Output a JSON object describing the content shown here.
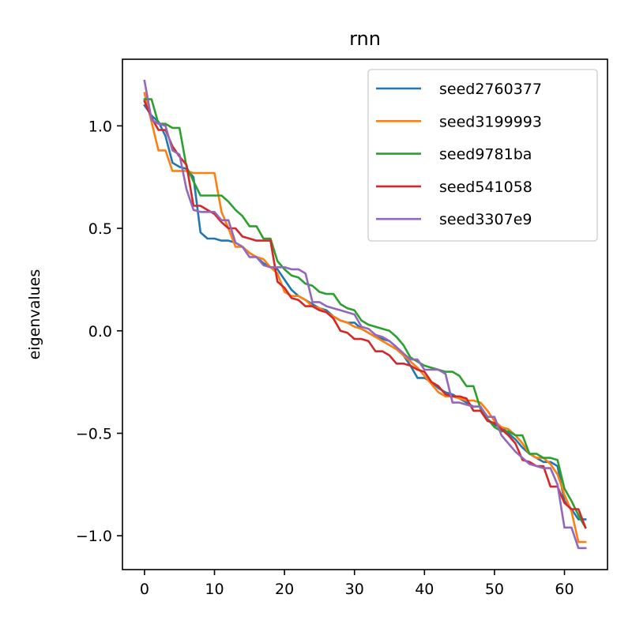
{
  "chart_data": {
    "type": "line",
    "title": "rnn",
    "xlabel": "",
    "ylabel": "eigenvalues",
    "xlim": [
      -3.15,
      66.15
    ],
    "ylim": [
      -1.165,
      1.325
    ],
    "xticks": [
      0,
      10,
      20,
      30,
      40,
      50,
      60
    ],
    "xtick_labels": [
      "0",
      "10",
      "20",
      "30",
      "40",
      "50",
      "60"
    ],
    "yticks": [
      1.0,
      0.5,
      0.0,
      -0.5,
      -1.0
    ],
    "ytick_labels": [
      "1.0",
      "0.5",
      "0.0",
      "−0.5",
      "−1.0"
    ],
    "grid": false,
    "legend_position": "top-right",
    "series": [
      {
        "name": "seed2760377",
        "color": "#1f77b4",
        "values": [
          1.1,
          1.05,
          1.02,
          0.95,
          0.82,
          0.8,
          0.79,
          0.75,
          0.48,
          0.45,
          0.45,
          0.44,
          0.44,
          0.43,
          0.41,
          0.38,
          0.36,
          0.33,
          0.31,
          0.3,
          0.25,
          0.2,
          0.17,
          0.15,
          0.13,
          0.11,
          0.1,
          0.07,
          0.05,
          0.04,
          0.04,
          0.01,
          -0.01,
          -0.03,
          -0.04,
          -0.05,
          -0.08,
          -0.12,
          -0.17,
          -0.23,
          -0.23,
          -0.25,
          -0.28,
          -0.3,
          -0.31,
          -0.33,
          -0.35,
          -0.37,
          -0.37,
          -0.43,
          -0.46,
          -0.47,
          -0.5,
          -0.53,
          -0.57,
          -0.6,
          -0.62,
          -0.64,
          -0.64,
          -0.66,
          -0.83,
          -0.87,
          -0.92,
          -0.92
        ]
      },
      {
        "name": "seed3199993",
        "color": "#ff7f0e",
        "values": [
          1.16,
          1.02,
          0.88,
          0.88,
          0.78,
          0.78,
          0.78,
          0.77,
          0.77,
          0.77,
          0.77,
          0.58,
          0.5,
          0.41,
          0.41,
          0.38,
          0.36,
          0.35,
          0.31,
          0.28,
          0.19,
          0.17,
          0.17,
          0.15,
          0.12,
          0.11,
          0.09,
          0.07,
          0.05,
          0.04,
          0.02,
          0.01,
          -0.01,
          -0.03,
          -0.05,
          -0.07,
          -0.09,
          -0.12,
          -0.15,
          -0.18,
          -0.22,
          -0.26,
          -0.3,
          -0.32,
          -0.32,
          -0.33,
          -0.34,
          -0.34,
          -0.35,
          -0.39,
          -0.44,
          -0.47,
          -0.48,
          -0.51,
          -0.55,
          -0.6,
          -0.62,
          -0.62,
          -0.65,
          -0.7,
          -0.8,
          -0.88,
          -1.03,
          -1.03
        ]
      },
      {
        "name": "seed9781ba",
        "color": "#2ca02c",
        "values": [
          1.13,
          1.13,
          1.01,
          1.01,
          0.99,
          0.99,
          0.8,
          0.73,
          0.66,
          0.66,
          0.66,
          0.66,
          0.63,
          0.59,
          0.56,
          0.51,
          0.51,
          0.45,
          0.45,
          0.34,
          0.3,
          0.27,
          0.26,
          0.23,
          0.22,
          0.19,
          0.18,
          0.18,
          0.13,
          0.11,
          0.1,
          0.05,
          0.03,
          0.02,
          0.01,
          0.0,
          -0.03,
          -0.07,
          -0.13,
          -0.15,
          -0.17,
          -0.18,
          -0.19,
          -0.2,
          -0.2,
          -0.22,
          -0.27,
          -0.27,
          -0.38,
          -0.43,
          -0.47,
          -0.49,
          -0.49,
          -0.51,
          -0.51,
          -0.6,
          -0.6,
          -0.62,
          -0.62,
          -0.63,
          -0.77,
          -0.83,
          -0.9,
          -0.96
        ]
      },
      {
        "name": "seed541058",
        "color": "#d62728",
        "values": [
          1.12,
          1.04,
          0.98,
          0.98,
          0.9,
          0.85,
          0.81,
          0.61,
          0.61,
          0.59,
          0.57,
          0.53,
          0.5,
          0.5,
          0.46,
          0.45,
          0.44,
          0.44,
          0.44,
          0.24,
          0.21,
          0.16,
          0.15,
          0.12,
          0.12,
          0.1,
          0.09,
          0.06,
          0.0,
          -0.01,
          -0.04,
          -0.04,
          -0.05,
          -0.1,
          -0.1,
          -0.12,
          -0.16,
          -0.16,
          -0.17,
          -0.19,
          -0.2,
          -0.25,
          -0.27,
          -0.31,
          -0.32,
          -0.32,
          -0.33,
          -0.39,
          -0.39,
          -0.44,
          -0.45,
          -0.48,
          -0.51,
          -0.55,
          -0.63,
          -0.64,
          -0.66,
          -0.66,
          -0.76,
          -0.76,
          -0.84,
          -0.87,
          -0.87,
          -0.96
        ]
      },
      {
        "name": "seed3307e9",
        "color": "#9467bd",
        "values": [
          1.22,
          1.03,
          1.01,
          1.0,
          0.88,
          0.86,
          0.69,
          0.59,
          0.58,
          0.58,
          0.58,
          0.54,
          0.54,
          0.43,
          0.41,
          0.36,
          0.36,
          0.32,
          0.31,
          0.31,
          0.31,
          0.3,
          0.3,
          0.28,
          0.14,
          0.14,
          0.12,
          0.11,
          0.1,
          0.09,
          0.08,
          0.02,
          0.01,
          -0.02,
          -0.03,
          -0.05,
          -0.08,
          -0.11,
          -0.14,
          -0.14,
          -0.19,
          -0.19,
          -0.19,
          -0.21,
          -0.35,
          -0.35,
          -0.36,
          -0.37,
          -0.37,
          -0.42,
          -0.42,
          -0.51,
          -0.55,
          -0.59,
          -0.62,
          -0.65,
          -0.66,
          -0.67,
          -0.67,
          -0.75,
          -0.96,
          -0.96,
          -1.06,
          -1.06
        ]
      }
    ]
  }
}
